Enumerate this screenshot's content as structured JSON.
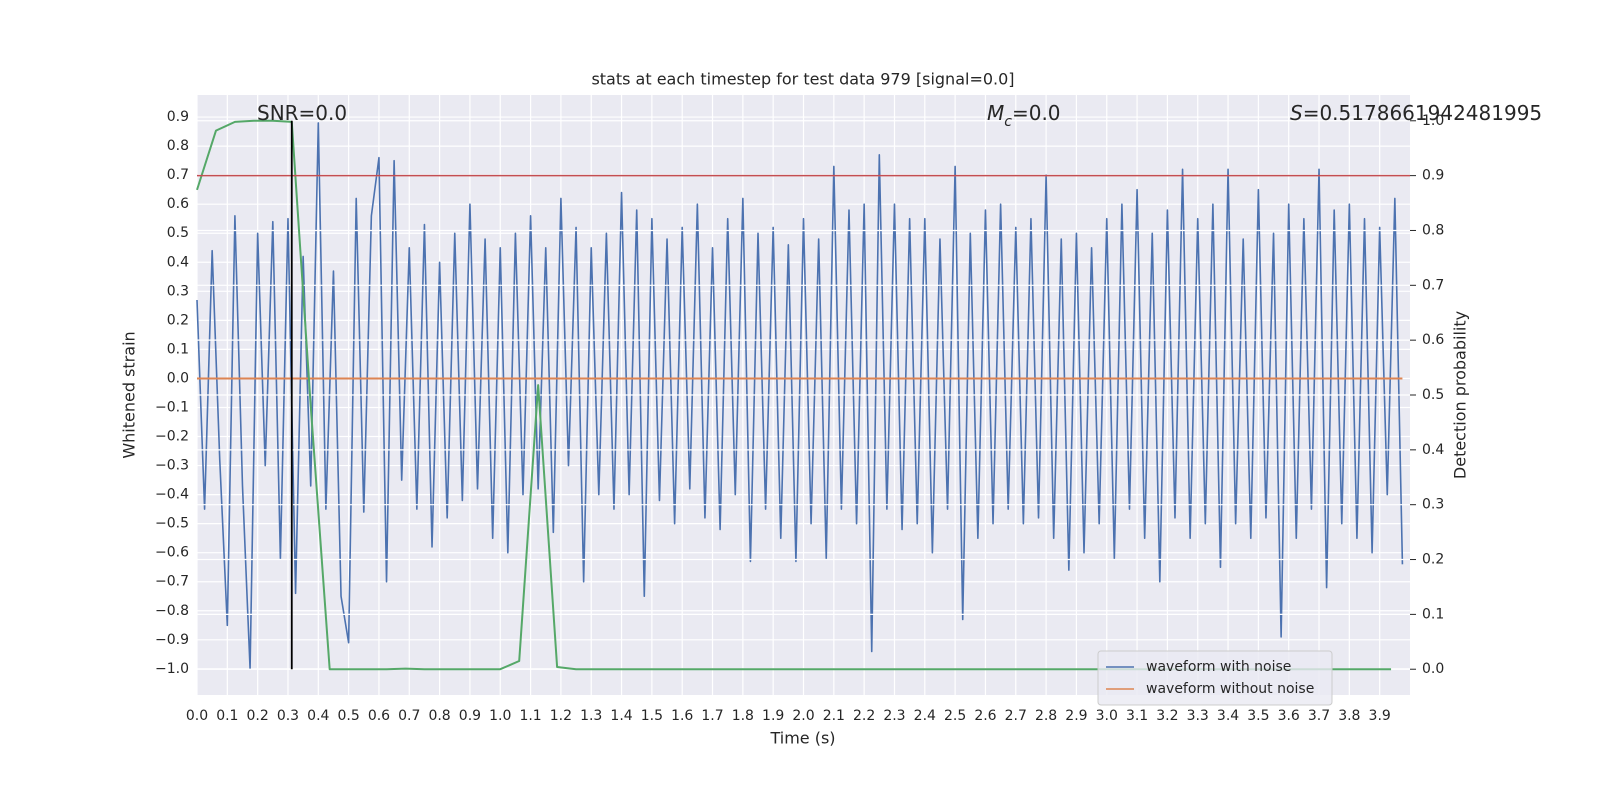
{
  "chart_data": {
    "type": "line",
    "title": "stats at each timestep for test data 979 [signal=0.0]",
    "xlabel": "Time (s)",
    "ylabel": "Whitened strain",
    "y2label": "Detection probability",
    "annotations": [
      {
        "parts": [
          {
            "text": "SNR=0.0"
          }
        ]
      },
      {
        "parts": [
          {
            "text": "M",
            "style": "italic"
          },
          {
            "text": "c",
            "style": "sub"
          },
          {
            "text": "=0.0"
          }
        ]
      },
      {
        "parts": [
          {
            "text": "S",
            "style": "italic"
          },
          {
            "text": "=0.5178661942481995"
          }
        ]
      }
    ],
    "x": [
      0,
      0.025,
      0.05,
      0.075,
      0.1,
      0.125,
      0.15,
      0.175,
      0.2,
      0.225,
      0.25,
      0.275,
      0.3,
      0.325,
      0.35,
      0.375,
      0.4,
      0.425,
      0.45,
      0.475,
      0.5,
      0.525,
      0.55,
      0.575,
      0.6,
      0.625,
      0.65,
      0.675,
      0.7,
      0.725,
      0.75,
      0.775,
      0.8,
      0.825,
      0.85,
      0.875,
      0.9,
      0.925,
      0.95,
      0.975,
      1,
      1.025,
      1.05,
      1.075,
      1.1,
      1.125,
      1.15,
      1.175,
      1.2,
      1.225,
      1.25,
      1.275,
      1.3,
      1.325,
      1.35,
      1.375,
      1.4,
      1.425,
      1.45,
      1.475,
      1.5,
      1.525,
      1.55,
      1.575,
      1.6,
      1.625,
      1.65,
      1.675,
      1.7,
      1.725,
      1.75,
      1.775,
      1.8,
      1.825,
      1.85,
      1.875,
      1.9,
      1.925,
      1.95,
      1.975,
      2,
      2.025,
      2.05,
      2.075,
      2.1,
      2.125,
      2.15,
      2.175,
      2.2,
      2.225,
      2.25,
      2.275,
      2.3,
      2.325,
      2.35,
      2.375,
      2.4,
      2.425,
      2.45,
      2.475,
      2.5,
      2.525,
      2.55,
      2.575,
      2.6,
      2.625,
      2.65,
      2.675,
      2.7,
      2.725,
      2.75,
      2.775,
      2.8,
      2.825,
      2.85,
      2.875,
      2.9,
      2.925,
      2.95,
      2.975,
      3,
      3.025,
      3.05,
      3.075,
      3.1,
      3.125,
      3.15,
      3.175,
      3.2,
      3.225,
      3.25,
      3.275,
      3.3,
      3.325,
      3.35,
      3.375,
      3.4,
      3.425,
      3.45,
      3.475,
      3.5,
      3.525,
      3.55,
      3.575,
      3.6,
      3.625,
      3.65,
      3.675,
      3.7,
      3.725,
      3.75,
      3.775,
      3.8,
      3.825,
      3.85,
      3.875,
      3.9,
      3.925,
      3.95,
      3.975
    ],
    "series": [
      {
        "name": "waveform with noise",
        "color": "#4c72b0",
        "values": [
          0.27,
          -0.45,
          0.44,
          -0.28,
          -0.85,
          0.56,
          -0.37,
          -1.0,
          0.5,
          -0.3,
          0.54,
          -0.62,
          0.55,
          -0.74,
          0.42,
          -0.37,
          0.88,
          -0.45,
          0.37,
          -0.75,
          -0.91,
          0.62,
          -0.46,
          0.56,
          0.76,
          -0.7,
          0.75,
          -0.35,
          0.45,
          -0.45,
          0.53,
          -0.58,
          0.4,
          -0.48,
          0.5,
          -0.42,
          0.6,
          -0.38,
          0.48,
          -0.55,
          0.45,
          -0.6,
          0.5,
          -0.4,
          0.56,
          -0.38,
          0.45,
          -0.53,
          0.62,
          -0.3,
          0.52,
          -0.7,
          0.45,
          -0.4,
          0.5,
          -0.45,
          0.64,
          -0.4,
          0.58,
          -0.75,
          0.55,
          -0.42,
          0.48,
          -0.5,
          0.52,
          -0.38,
          0.6,
          -0.48,
          0.45,
          -0.52,
          0.55,
          -0.4,
          0.62,
          -0.63,
          0.5,
          -0.45,
          0.52,
          -0.55,
          0.46,
          -0.63,
          0.55,
          -0.5,
          0.48,
          -0.62,
          0.73,
          -0.45,
          0.58,
          -0.5,
          0.6,
          -0.94,
          0.77,
          -0.45,
          0.6,
          -0.52,
          0.55,
          -0.5,
          0.55,
          -0.6,
          0.48,
          -0.45,
          0.73,
          -0.83,
          0.5,
          -0.55,
          0.58,
          -0.5,
          0.6,
          -0.45,
          0.52,
          -0.5,
          0.55,
          -0.48,
          0.7,
          -0.55,
          0.48,
          -0.66,
          0.5,
          -0.6,
          0.45,
          -0.5,
          0.55,
          -0.62,
          0.6,
          -0.45,
          0.65,
          -0.55,
          0.5,
          -0.7,
          0.58,
          -0.48,
          0.72,
          -0.55,
          0.55,
          -0.5,
          0.6,
          -0.65,
          0.72,
          -0.5,
          0.48,
          -0.55,
          0.65,
          -0.48,
          0.5,
          -0.89,
          0.6,
          -0.55,
          0.55,
          -0.45,
          0.72,
          -0.72,
          0.58,
          -0.5,
          0.6,
          -0.55,
          0.55,
          -0.6,
          0.52,
          -0.4,
          0.62,
          -0.64
        ]
      },
      {
        "name": "waveform without noise",
        "color": "#dd8452",
        "values": [
          0,
          0,
          0,
          0,
          0,
          0,
          0,
          0,
          0,
          0,
          0,
          0,
          0,
          0,
          0,
          0,
          0,
          0,
          0,
          0,
          0,
          0,
          0,
          0,
          0,
          0,
          0,
          0,
          0,
          0,
          0,
          0,
          0,
          0,
          0,
          0,
          0,
          0,
          0,
          0,
          0,
          0,
          0,
          0,
          0,
          0,
          0,
          0,
          0,
          0,
          0,
          0,
          0,
          0,
          0,
          0,
          0,
          0,
          0,
          0,
          0,
          0,
          0,
          0,
          0,
          0,
          0,
          0,
          0,
          0,
          0,
          0,
          0,
          0,
          0,
          0,
          0,
          0,
          0,
          0,
          0,
          0,
          0,
          0,
          0,
          0,
          0,
          0,
          0,
          0,
          0,
          0,
          0,
          0,
          0,
          0,
          0,
          0,
          0,
          0,
          0,
          0,
          0,
          0,
          0,
          0,
          0,
          0,
          0,
          0,
          0,
          0,
          0,
          0,
          0,
          0,
          0,
          0,
          0,
          0,
          0,
          0,
          0,
          0,
          0,
          0,
          0,
          0,
          0,
          0,
          0,
          0,
          0,
          0,
          0,
          0,
          0,
          0,
          0,
          0,
          0,
          0,
          0,
          0,
          0,
          0,
          0,
          0,
          0,
          0,
          0,
          0,
          0,
          0,
          0,
          0,
          0,
          0,
          0,
          0
        ]
      },
      {
        "color": "#55a868",
        "axis": "y2",
        "x": [
          0,
          0.0625,
          0.125,
          0.1875,
          0.25,
          0.3125,
          0.375,
          0.4375,
          0.5,
          0.5625,
          0.625,
          0.6875,
          0.75,
          0.8125,
          0.875,
          0.9375,
          1,
          1.0625,
          1.125,
          1.1875,
          1.25,
          1.3125,
          1.375,
          1.4375,
          1.5,
          1.5625,
          1.625,
          1.6875,
          1.75,
          1.8125,
          1.875,
          1.9375,
          2,
          2.0625,
          2.125,
          2.1875,
          2.25,
          2.3125,
          2.375,
          2.4375,
          2.5,
          2.5625,
          2.625,
          2.6875,
          2.75,
          2.8125,
          2.875,
          2.9375,
          3,
          3.0625,
          3.125,
          3.1875,
          3.25,
          3.3125,
          3.375,
          3.4375,
          3.5,
          3.5625,
          3.625,
          3.6875,
          3.75,
          3.8125,
          3.875,
          3.9375
        ],
        "values": [
          0.874,
          0.982,
          0.998,
          1.0,
          1.0,
          0.998,
          0.48,
          0,
          0,
          0,
          0,
          0.001,
          0,
          0,
          0,
          0,
          0,
          0.015,
          0.518,
          0.004,
          0,
          0,
          0,
          0,
          0,
          0,
          0,
          0,
          0,
          0,
          0,
          0,
          0,
          0,
          0,
          0,
          0,
          0,
          0,
          0,
          0,
          0,
          0,
          0,
          0,
          0,
          0,
          0,
          0,
          0,
          0,
          0,
          0,
          0,
          0,
          0,
          0,
          0,
          0,
          0,
          0,
          0,
          0,
          0
        ]
      }
    ],
    "hlines": [
      {
        "value": 0.9,
        "axis": "y2",
        "color": "#c44e52"
      }
    ],
    "vlines": [
      {
        "x": 0.3125,
        "ymin": 0,
        "ymax": 1,
        "axis": "y2",
        "color": "#000000"
      }
    ],
    "xlim": [
      0,
      4.0
    ],
    "ylim": [
      -1.09,
      0.976
    ],
    "y2lim": [
      -0.047,
      1.047
    ],
    "xticks": [
      {
        "value": 0,
        "label": "0.0"
      },
      0.1,
      0.2,
      0.3,
      0.4,
      0.5,
      0.6,
      0.7,
      0.8,
      0.9,
      {
        "value": 1,
        "label": "1.0"
      },
      1.1,
      1.2,
      1.3,
      1.4,
      1.5,
      1.6,
      1.7,
      1.8,
      1.9,
      {
        "value": 2,
        "label": "2.0"
      },
      2.1,
      2.2,
      2.3,
      2.4,
      2.5,
      2.6,
      2.7,
      2.8,
      2.9,
      {
        "value": 3,
        "label": "3.0"
      },
      3.1,
      3.2,
      3.3,
      3.4,
      3.5,
      3.6,
      3.7,
      3.8,
      3.9
    ],
    "yticks": [
      {
        "value": -1,
        "label": "−1.0"
      },
      {
        "value": -0.9,
        "label": "−0.9"
      },
      {
        "value": -0.8,
        "label": "−0.8"
      },
      {
        "value": -0.7,
        "label": "−0.7"
      },
      {
        "value": -0.6,
        "label": "−0.6"
      },
      {
        "value": -0.5,
        "label": "−0.5"
      },
      {
        "value": -0.4,
        "label": "−0.4"
      },
      {
        "value": -0.3,
        "label": "−0.3"
      },
      {
        "value": -0.2,
        "label": "−0.2"
      },
      {
        "value": -0.1,
        "label": "−0.1"
      },
      {
        "value": 0,
        "label": "0.0"
      },
      0.1,
      0.2,
      0.3,
      0.4,
      0.5,
      0.6,
      0.7,
      0.8,
      0.9
    ],
    "y2ticks": [
      {
        "value": 0,
        "label": "0.0"
      },
      0.1,
      0.2,
      0.3,
      0.4,
      0.5,
      0.6,
      0.7,
      0.8,
      0.9,
      {
        "value": 1,
        "label": "1.0"
      }
    ],
    "grid": true,
    "y2grid": true,
    "legend": "lower right"
  }
}
